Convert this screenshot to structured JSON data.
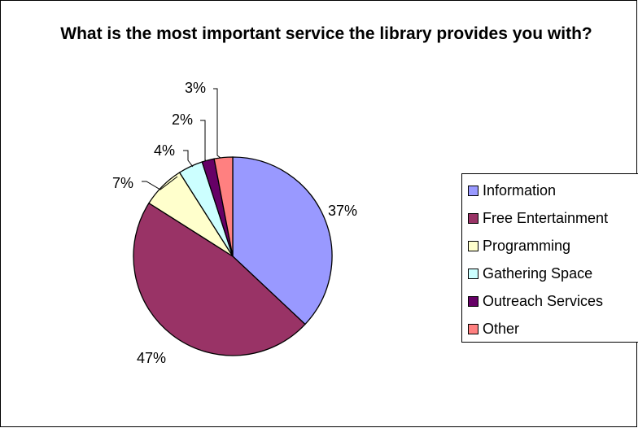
{
  "chart_data": {
    "type": "pie",
    "title": "What is the most important service the library provides you with?",
    "categories": [
      "Information",
      "Free Entertainment",
      "Programming",
      "Gathering Space",
      "Outreach Services",
      "Other"
    ],
    "values": [
      37,
      47,
      7,
      4,
      2,
      3
    ],
    "labels": [
      "37%",
      "47%",
      "7%",
      "4%",
      "2%",
      "3%"
    ],
    "colors": [
      "#9999FF",
      "#993366",
      "#FFFFCC",
      "#CCFFFF",
      "#660066",
      "#FF8080"
    ],
    "legend_placement": "right"
  }
}
